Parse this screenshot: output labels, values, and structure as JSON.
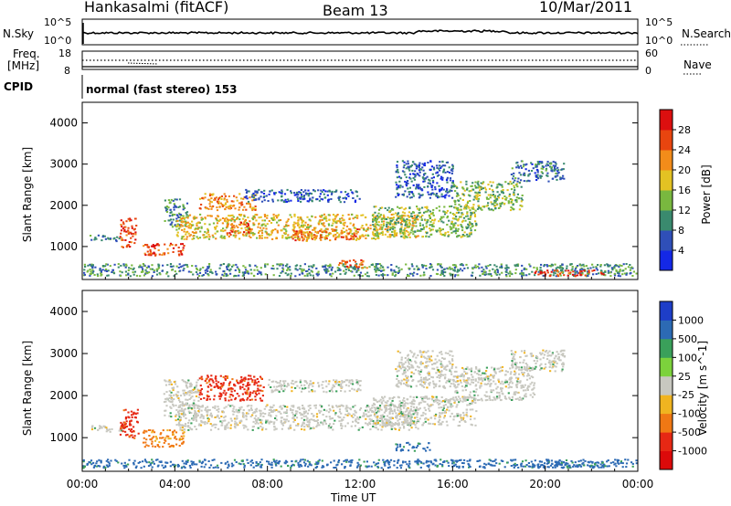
{
  "header": {
    "station": "Hankasalmi (fitACF)",
    "beam": "Beam 13",
    "date": "10/Mar/2011"
  },
  "nsky_panel": {
    "left_label": "N.Sky",
    "right_label": "N.Search",
    "left_ticks": [
      "10^5",
      "10^0"
    ],
    "right_ticks": [
      "10^5",
      "10^0"
    ]
  },
  "freq_panel": {
    "left_label_1": "Freq.",
    "left_label_2": "[MHz]",
    "right_label": "Nave",
    "left_ticks": [
      "18",
      "8"
    ],
    "right_ticks": [
      "60",
      "0"
    ]
  },
  "cpid": {
    "label": "CPID",
    "mode": "normal (fast stereo) 153"
  },
  "chart_data": [
    {
      "type": "heatmap",
      "panel": "power",
      "ylabel": "Slant Range [km]",
      "xlabel": "",
      "ylim": [
        200,
        4500
      ],
      "yticks": [
        "1000",
        "2000",
        "3000",
        "4000"
      ],
      "colorbar": {
        "label": "Power [dB]",
        "ticks": [
          "4",
          "8",
          "12",
          "16",
          "20",
          "24",
          "28"
        ],
        "colors": [
          "#1428e6",
          "#2f4fb8",
          "#3a8a6e",
          "#79b83f",
          "#e3c223",
          "#f28c1a",
          "#e8450f",
          "#dc0f0f"
        ]
      },
      "echo_regions": [
        {
          "t0": 0.0,
          "t1": 24.0,
          "r0": 300,
          "r1": 600,
          "power": 10
        },
        {
          "t0": 0.3,
          "t1": 1.6,
          "r0": 1150,
          "r1": 1300,
          "power": 9
        },
        {
          "t0": 1.6,
          "t1": 2.3,
          "r0": 1000,
          "r1": 1700,
          "power": 26
        },
        {
          "t0": 2.6,
          "t1": 4.4,
          "r0": 800,
          "r1": 1100,
          "power": 27
        },
        {
          "t0": 3.5,
          "t1": 4.5,
          "r0": 1500,
          "r1": 2200,
          "power": 11
        },
        {
          "t0": 4.0,
          "t1": 14.5,
          "r0": 1200,
          "r1": 1800,
          "power": 19
        },
        {
          "t0": 5.0,
          "t1": 7.5,
          "r0": 1900,
          "r1": 2300,
          "power": 22
        },
        {
          "t0": 6.2,
          "t1": 7.2,
          "r0": 1300,
          "r1": 1600,
          "power": 26
        },
        {
          "t0": 7.0,
          "t1": 12.0,
          "r0": 2100,
          "r1": 2400,
          "power": 6
        },
        {
          "t0": 9.0,
          "t1": 12.0,
          "r0": 1150,
          "r1": 1450,
          "power": 24
        },
        {
          "t0": 11.0,
          "t1": 12.3,
          "r0": 500,
          "r1": 700,
          "power": 25
        },
        {
          "t0": 12.5,
          "t1": 17.0,
          "r0": 1250,
          "r1": 2000,
          "power": 14
        },
        {
          "t0": 13.5,
          "t1": 16.0,
          "r0": 2200,
          "r1": 3100,
          "power": 7
        },
        {
          "t0": 16.0,
          "t1": 19.0,
          "r0": 1900,
          "r1": 2600,
          "power": 14
        },
        {
          "t0": 18.5,
          "t1": 20.8,
          "r0": 2600,
          "r1": 3100,
          "power": 8
        },
        {
          "t0": 19.5,
          "t1": 22.5,
          "r0": 300,
          "r1": 450,
          "power": 28
        }
      ]
    },
    {
      "type": "heatmap",
      "panel": "velocity",
      "ylabel": "Slant Range [km]",
      "xlabel": "Time UT",
      "ylim": [
        200,
        4500
      ],
      "yticks": [
        "1000",
        "2000",
        "3000",
        "4000"
      ],
      "xticks": [
        "00:00",
        "04:00",
        "08:00",
        "12:00",
        "16:00",
        "20:00",
        "00:00"
      ],
      "colorbar": {
        "label": "Velocity [m s^-1]",
        "ticks": [
          "1000",
          "500",
          "100",
          "25",
          "-25",
          "-100",
          "-500",
          "-1000"
        ],
        "colors": [
          "#1e3ec8",
          "#2c6ab4",
          "#3aa05a",
          "#7cd23c",
          "#c8c8c0",
          "#f0b420",
          "#f07814",
          "#e62814",
          "#dc0a0a"
        ]
      },
      "echo_regions": [
        {
          "t0": 0.0,
          "t1": 24.0,
          "r0": 300,
          "r1": 500,
          "velocity": 150
        },
        {
          "t0": 0.3,
          "t1": 1.8,
          "r0": 1150,
          "r1": 1300,
          "velocity": 0
        },
        {
          "t0": 1.6,
          "t1": 2.4,
          "r0": 1000,
          "r1": 1700,
          "velocity": -700
        },
        {
          "t0": 2.6,
          "t1": 4.4,
          "r0": 800,
          "r1": 1200,
          "velocity": -150
        },
        {
          "t0": 4.0,
          "t1": 14.5,
          "r0": 1200,
          "r1": 1800,
          "velocity": 0
        },
        {
          "t0": 3.5,
          "t1": 5.0,
          "r0": 1500,
          "r1": 2400,
          "velocity": 0
        },
        {
          "t0": 5.0,
          "t1": 7.8,
          "r0": 1900,
          "r1": 2500,
          "velocity": -700
        },
        {
          "t0": 8.0,
          "t1": 12.0,
          "r0": 2100,
          "r1": 2400,
          "velocity": 0
        },
        {
          "t0": 12.5,
          "t1": 17.0,
          "r0": 1300,
          "r1": 2000,
          "velocity": 0
        },
        {
          "t0": 13.5,
          "t1": 16.0,
          "r0": 2200,
          "r1": 3100,
          "velocity": 0
        },
        {
          "t0": 16.0,
          "t1": 19.5,
          "r0": 1900,
          "r1": 2700,
          "velocity": 0
        },
        {
          "t0": 18.5,
          "t1": 20.8,
          "r0": 2600,
          "r1": 3100,
          "velocity": 0
        },
        {
          "t0": 13.5,
          "t1": 15.0,
          "r0": 700,
          "r1": 900,
          "velocity": 150
        },
        {
          "t0": 19.5,
          "t1": 22.5,
          "r0": 300,
          "r1": 450,
          "velocity": 150
        }
      ]
    }
  ]
}
